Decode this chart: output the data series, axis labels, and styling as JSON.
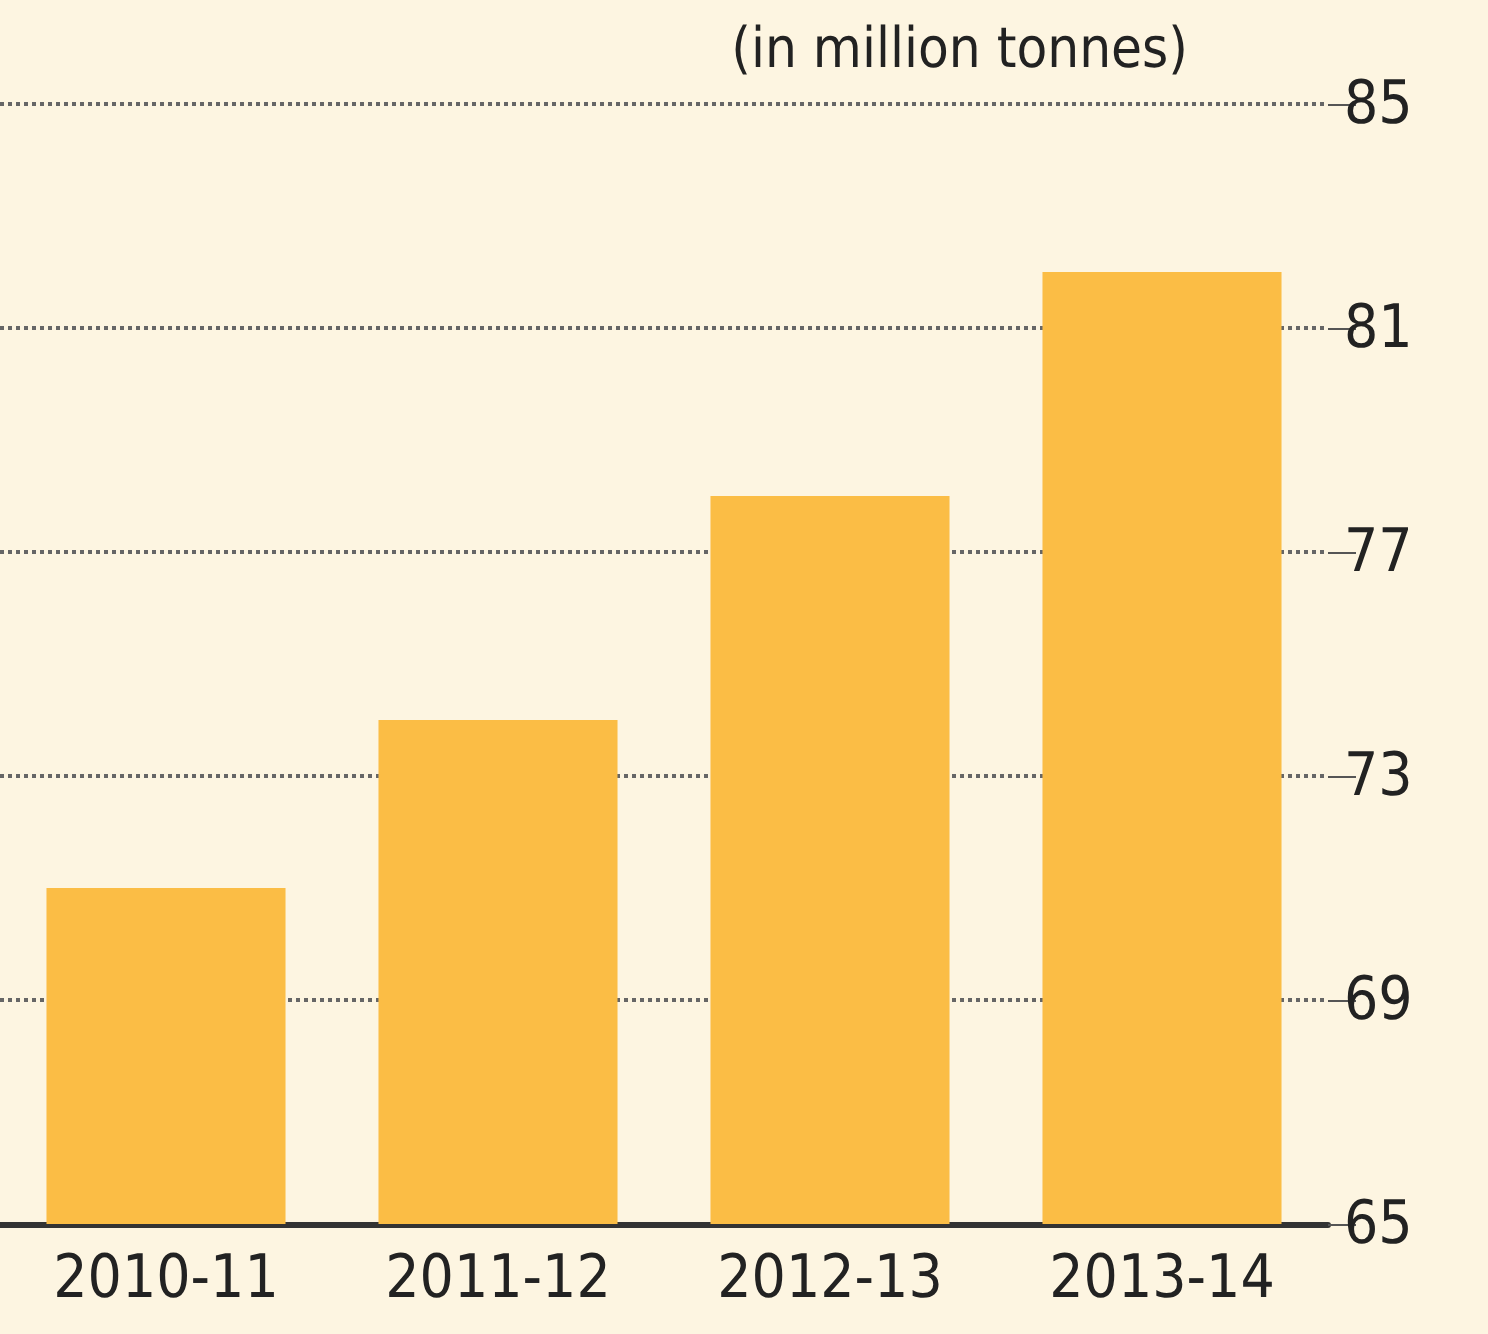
{
  "chart_data": {
    "type": "bar",
    "ylabel": "(in million tonnes)",
    "categories": [
      "2010-11",
      "2011-12",
      "2012-13",
      "2013-14"
    ],
    "values": [
      71,
      74,
      78,
      82
    ],
    "color": "#fbbd45",
    "ylim": [
      65,
      85
    ],
    "yticks": [
      65,
      69,
      73,
      77,
      81,
      85
    ],
    "grid": "y"
  }
}
